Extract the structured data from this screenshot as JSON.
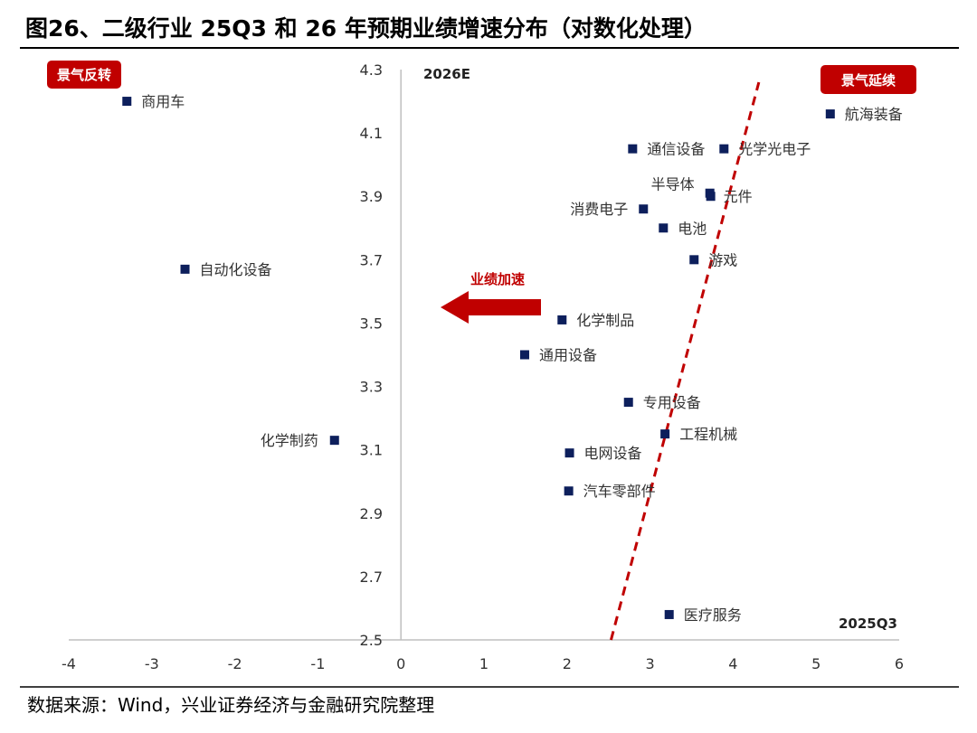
{
  "title": "图26、二级行业 25Q3 和 26 年预期业绩增速分布（对数化处理）",
  "source": "数据来源：Wind，兴业证券经济与金融研究院整理",
  "colors": {
    "marker": "#0d1f5c",
    "accent": "#c00000",
    "axis": "#bfbfbf"
  },
  "annotations": {
    "badge_left": "景气反转",
    "badge_right": "景气延续",
    "arrow_label": "业绩加速",
    "y_axis_title": "2026E",
    "x_axis_title": "2025Q3"
  },
  "chart_data": {
    "type": "scatter",
    "xlabel": "2025Q3",
    "ylabel": "2026E",
    "xlim": [
      -4,
      6
    ],
    "ylim": [
      2.5,
      4.3
    ],
    "x_ticks": [
      "-4",
      "-3",
      "-2",
      "-1",
      "0",
      "1",
      "2",
      "3",
      "4",
      "5",
      "6"
    ],
    "y_ticks": [
      "2.5",
      "2.7",
      "2.9",
      "3.1",
      "3.3",
      "3.5",
      "3.7",
      "3.9",
      "4.1",
      "4.3"
    ],
    "grid": false,
    "trend_line": {
      "style": "dashed",
      "points": [
        [
          2.53,
          2.5
        ],
        [
          4.31,
          4.26
        ]
      ]
    },
    "points": [
      {
        "label": "商用车",
        "x": -3.3,
        "y": 4.2
      },
      {
        "label": "自动化设备",
        "x": -2.6,
        "y": 3.67
      },
      {
        "label": "化学制药",
        "x": -0.8,
        "y": 3.13
      },
      {
        "label": "航海装备",
        "x": 5.17,
        "y": 4.16
      },
      {
        "label": "通信设备",
        "x": 2.79,
        "y": 4.05
      },
      {
        "label": "光学光电子",
        "x": 3.89,
        "y": 4.05
      },
      {
        "label": "半导体",
        "x": 3.72,
        "y": 3.91
      },
      {
        "label": "元件",
        "x": 3.73,
        "y": 3.9
      },
      {
        "label": "消费电子",
        "x": 2.92,
        "y": 3.86
      },
      {
        "label": "电池",
        "x": 3.16,
        "y": 3.8
      },
      {
        "label": "游戏",
        "x": 3.53,
        "y": 3.7
      },
      {
        "label": "化学制品",
        "x": 1.94,
        "y": 3.51
      },
      {
        "label": "通用设备",
        "x": 1.49,
        "y": 3.4
      },
      {
        "label": "专用设备",
        "x": 2.74,
        "y": 3.25
      },
      {
        "label": "工程机械",
        "x": 3.18,
        "y": 3.15
      },
      {
        "label": "电网设备",
        "x": 2.03,
        "y": 3.09
      },
      {
        "label": "汽车零部件",
        "x": 2.02,
        "y": 2.97
      },
      {
        "label": "医疗服务",
        "x": 3.23,
        "y": 2.58
      }
    ]
  }
}
